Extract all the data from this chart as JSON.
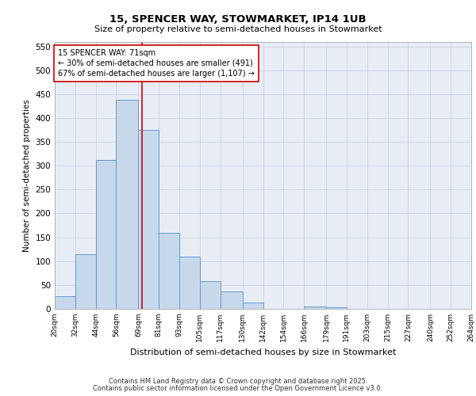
{
  "title1": "15, SPENCER WAY, STOWMARKET, IP14 1UB",
  "title2": "Size of property relative to semi-detached houses in Stowmarket",
  "xlabel": "Distribution of semi-detached houses by size in Stowmarket",
  "ylabel": "Number of semi-detached properties",
  "bin_edges": [
    20,
    32,
    44,
    56,
    69,
    81,
    93,
    105,
    117,
    130,
    142,
    154,
    166,
    179,
    191,
    203,
    215,
    227,
    240,
    252,
    264
  ],
  "bar_heights": [
    27,
    115,
    312,
    438,
    375,
    160,
    110,
    58,
    36,
    13,
    0,
    0,
    5,
    4,
    0,
    0,
    0,
    0,
    0,
    0
  ],
  "bar_color": "#c8d8eb",
  "bar_edge_color": "#6699cc",
  "grid_color": "#c5cfe0",
  "background_color": "#e8edf5",
  "vline_x": 71,
  "vline_color": "#cc0000",
  "annotation_text": "15 SPENCER WAY: 71sqm\n← 30% of semi-detached houses are smaller (491)\n67% of semi-detached houses are larger (1,107) →",
  "annotation_box_color": "#ffffff",
  "annotation_box_edge_color": "#cc0000",
  "ylim": [
    0,
    560
  ],
  "yticks": [
    0,
    50,
    100,
    150,
    200,
    250,
    300,
    350,
    400,
    450,
    500,
    550
  ],
  "footnote1": "Contains HM Land Registry data © Crown copyright and database right 2025.",
  "footnote2": "Contains public sector information licensed under the Open Government Licence v3.0.",
  "tick_labels": [
    "20sqm",
    "32sqm",
    "44sqm",
    "56sqm",
    "69sqm",
    "81sqm",
    "93sqm",
    "105sqm",
    "117sqm",
    "130sqm",
    "142sqm",
    "154sqm",
    "166sqm",
    "179sqm",
    "191sqm",
    "203sqm",
    "215sqm",
    "227sqm",
    "240sqm",
    "252sqm",
    "264sqm"
  ]
}
